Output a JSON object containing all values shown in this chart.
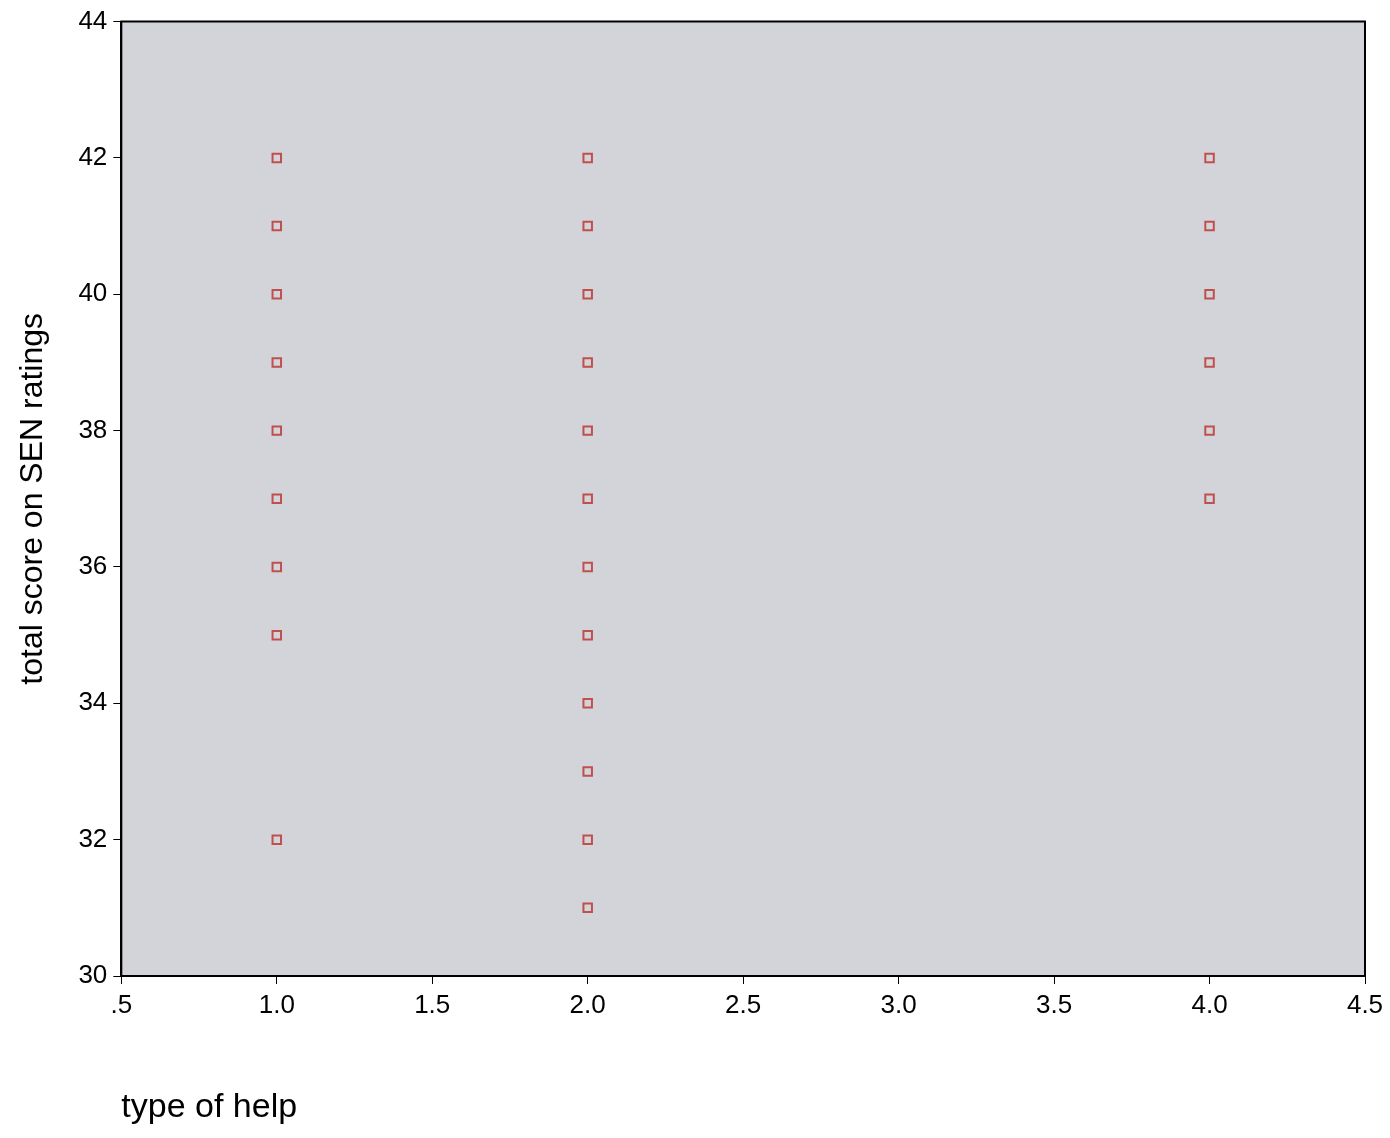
{
  "chart_data": {
    "type": "scatter",
    "xlabel": "type of help",
    "ylabel": "total score on SEN ratings",
    "series": [
      {
        "color": "#c0504d",
        "x": [
          1,
          1,
          1,
          1,
          1,
          1,
          1,
          1,
          1
        ],
        "values": [
          42,
          41,
          40,
          39,
          38,
          37,
          36,
          35,
          32
        ]
      },
      {
        "color": "#c0504d",
        "x": [
          2,
          2,
          2,
          2,
          2,
          2,
          2,
          2,
          2,
          2,
          2,
          2
        ],
        "values": [
          42,
          41,
          40,
          39,
          38,
          37,
          36,
          35,
          34,
          33,
          32,
          31
        ]
      },
      {
        "color": "#c0504d",
        "x": [
          4,
          4,
          4,
          4,
          4,
          4
        ],
        "values": [
          42,
          41,
          40,
          39,
          38,
          37
        ]
      }
    ],
    "xlim": [
      0.5,
      4.5
    ],
    "xticks": [
      {
        "value": 0.5,
        "label": ".5"
      },
      {
        "value": 1,
        "label": "1.0"
      },
      {
        "value": 1.5,
        "label": "1.5"
      },
      {
        "value": 2,
        "label": "2.0"
      },
      {
        "value": 2.5,
        "label": "2.5"
      },
      {
        "value": 3,
        "label": "3.0"
      },
      {
        "value": 3.5,
        "label": "3.5"
      },
      {
        "value": 4,
        "label": "4.0"
      },
      {
        "value": 4.5,
        "label": "4.5"
      }
    ],
    "ylim": [
      30,
      44
    ],
    "yticks": [
      30,
      32,
      34,
      36,
      38,
      40,
      42,
      44
    ],
    "marker": "square",
    "grid": false,
    "legend": false
  }
}
